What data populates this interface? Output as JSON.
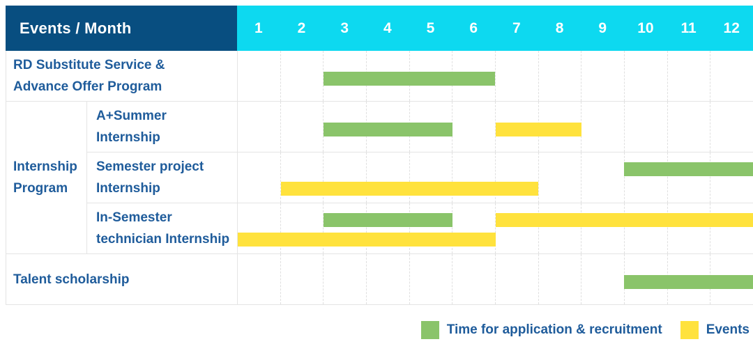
{
  "header": {
    "title": "Events / Month",
    "months": [
      "1",
      "2",
      "3",
      "4",
      "5",
      "6",
      "7",
      "8",
      "9",
      "10",
      "11",
      "12"
    ]
  },
  "legend": [
    {
      "kind": "application",
      "label": "Time for application & recruitment",
      "color": "#8AC46A"
    },
    {
      "kind": "events",
      "label": "Events",
      "color": "#FFE23D"
    }
  ],
  "colors": {
    "header_bg": "#084E80",
    "months_bg": "#0DD9F0",
    "label_text": "#1F5C9B",
    "application": "#8AC46A",
    "events": "#FFE23D",
    "grid": "#E4E4E4",
    "grid_dashed": "#DFDFDF"
  },
  "chart_data": {
    "type": "gantt",
    "title": "Events / Month",
    "x_unit": "month",
    "x_domain": [
      1,
      13
    ],
    "bar_kinds": {
      "application": "Time for application & recruitment",
      "events": "Events"
    },
    "group_label": "Internship Program",
    "group_label_lines": [
      "Internship",
      "Program"
    ],
    "rows": [
      {
        "label": "RD Substitute Service & Advance Offer Program",
        "label_lines": [
          "RD Substitute Service &",
          "Advance Offer Program"
        ],
        "group": null,
        "lines": [
          [
            {
              "kind": "application",
              "start": 3,
              "end": 7
            }
          ]
        ]
      },
      {
        "label": "A+Summer Internship",
        "label_lines": [
          "A+Summer",
          "Internship"
        ],
        "group": "Internship Program",
        "lines": [
          [
            {
              "kind": "application",
              "start": 3,
              "end": 6
            },
            {
              "kind": "events",
              "start": 7,
              "end": 9
            }
          ]
        ]
      },
      {
        "label": "Semester project Internship",
        "label_lines": [
          "Semester project",
          "Internship"
        ],
        "group": "Internship Program",
        "lines": [
          [
            {
              "kind": "application",
              "start": 10,
              "end": 13
            }
          ],
          [
            {
              "kind": "events",
              "start": 2,
              "end": 8
            }
          ]
        ]
      },
      {
        "label": "In-Semester technician Internship",
        "label_lines": [
          "In-Semester",
          "technician Internship"
        ],
        "group": "Internship Program",
        "lines": [
          [
            {
              "kind": "application",
              "start": 3,
              "end": 6
            },
            {
              "kind": "events",
              "start": 7,
              "end": 13
            }
          ],
          [
            {
              "kind": "events",
              "start": 1,
              "end": 7
            }
          ]
        ]
      },
      {
        "label": "Talent scholarship",
        "label_lines": [
          "Talent scholarship"
        ],
        "group": null,
        "lines": [
          [
            {
              "kind": "application",
              "start": 10,
              "end": 13
            }
          ]
        ]
      }
    ]
  }
}
